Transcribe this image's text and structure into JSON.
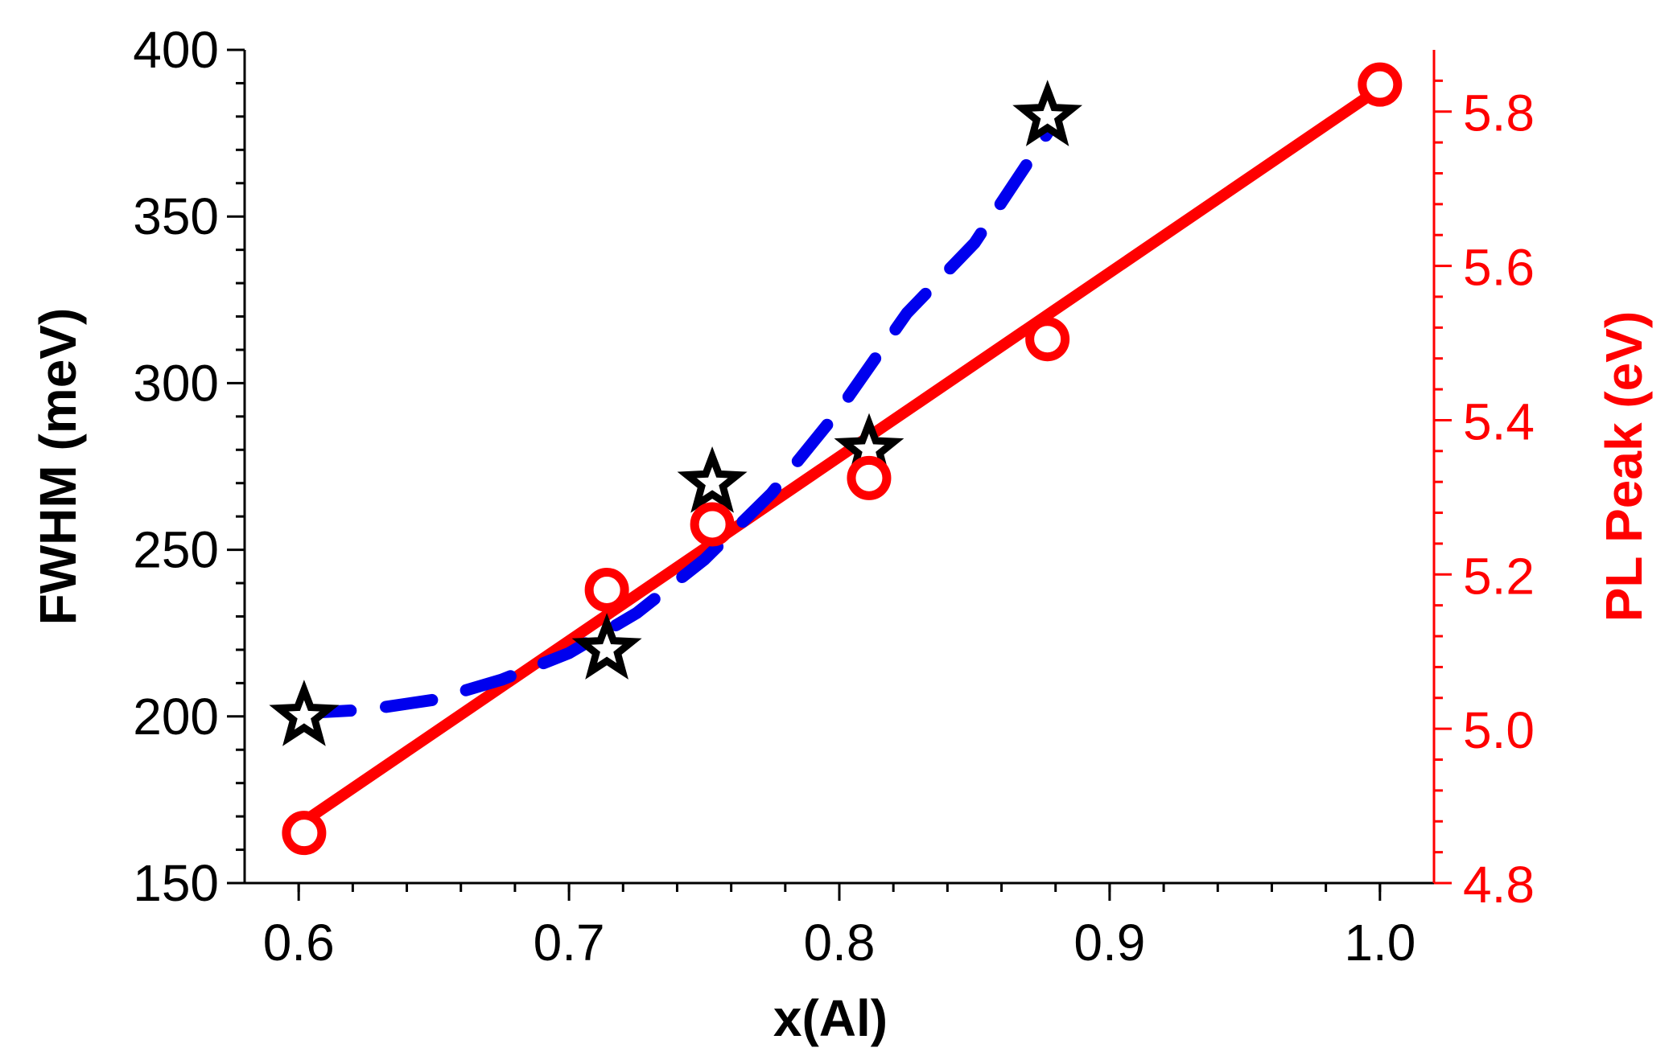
{
  "chart_data": {
    "type": "scatter",
    "xlabel": "x(Al)",
    "ylabel_left": "FWHM (meV)",
    "ylabel_right": "PL Peak (eV)",
    "xlim": [
      0.58,
      1.02
    ],
    "ylim_left": [
      150,
      400
    ],
    "ylim_right": [
      4.8,
      5.88
    ],
    "x_ticks": [
      "0.6",
      "0.7",
      "0.8",
      "0.9",
      "1.0"
    ],
    "y_left_ticks": [
      "150",
      "200",
      "250",
      "300",
      "350",
      "400"
    ],
    "y_right_ticks": [
      "4.8",
      "5.0",
      "5.2",
      "5.4",
      "5.6",
      "5.8"
    ],
    "grid": false,
    "colors": {
      "fwhm": "#000000",
      "fwhm_fit": "#0000ee",
      "pl": "#ff0000",
      "axis_left": "#000000",
      "axis_right": "#ff0000"
    },
    "series": [
      {
        "axis": "left",
        "marker": "star",
        "x": [
          0.602,
          0.714,
          0.753,
          0.811,
          0.877
        ],
        "y": [
          200,
          220,
          270,
          280,
          380
        ]
      },
      {
        "axis": "left",
        "style": "dashed",
        "x": [
          0.602,
          0.625,
          0.65,
          0.675,
          0.7,
          0.725,
          0.75,
          0.775,
          0.8,
          0.825,
          0.85,
          0.877
        ],
        "y": [
          201,
          202,
          205,
          211,
          219,
          231,
          247,
          267,
          292,
          321,
          342,
          375
        ]
      },
      {
        "axis": "right",
        "marker": "circle",
        "x": [
          0.602,
          0.714,
          0.753,
          0.811,
          0.877,
          1.0
        ],
        "y": [
          4.865,
          5.18,
          5.265,
          5.325,
          5.505,
          5.835
        ]
      },
      {
        "axis": "right",
        "style": "solid",
        "x": [
          0.602,
          1.0
        ],
        "y": [
          4.88,
          5.83
        ]
      }
    ]
  }
}
